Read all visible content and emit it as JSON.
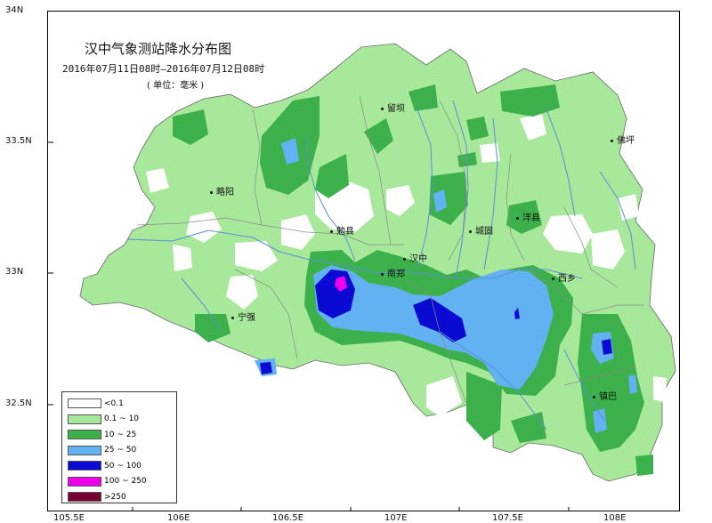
{
  "title": "汉中气象测站降水分布图",
  "subtitle": "2016年07月11日08时—2016年07月12日08时",
  "unit_note": "( 单位：毫米 )",
  "y_ticks": [
    "34N",
    "33.5N",
    "33N",
    "32.5N"
  ],
  "x_ticks": [
    "105.5E",
    "106E",
    "106.5E",
    "107E",
    "107.5E",
    "108E"
  ],
  "cities": [
    "留坝",
    "佛坪",
    "略阳",
    "洋县",
    "勉县",
    "城固",
    "汉中",
    "南郑",
    "西乡",
    "宁强",
    "镇巴"
  ],
  "legend": [
    {
      "label": "<0.1",
      "color": "#ffffff"
    },
    {
      "label": "0.1 ~ 10",
      "color": "#a7e89a"
    },
    {
      "label": "10 ~ 25",
      "color": "#3cb04a"
    },
    {
      "label": "25 ~ 50",
      "color": "#62b1f2"
    },
    {
      "label": "50 ~ 100",
      "color": "#0a0ad2"
    },
    {
      "label": "100 ~ 250",
      "color": "#ee00ee"
    },
    {
      "label": ">250",
      "color": "#7a0031"
    }
  ],
  "river_color": "#5a8fd8",
  "boundary_color": "#7a7a7a"
}
